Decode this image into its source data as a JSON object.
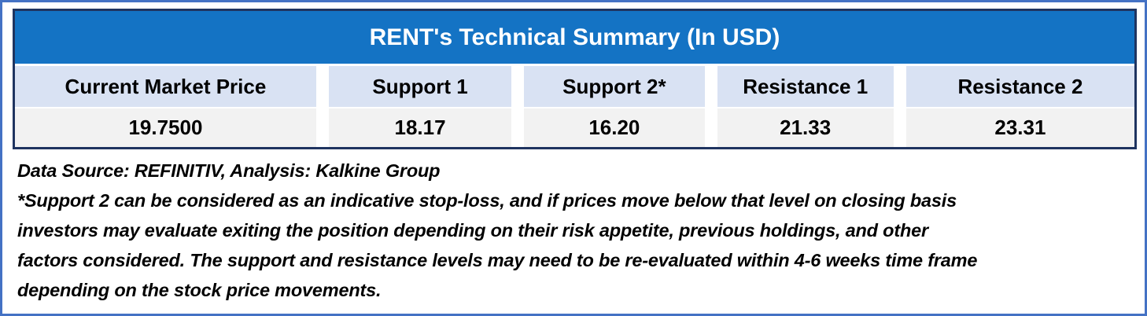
{
  "table": {
    "title": "RENT's Technical Summary (In USD)",
    "columns": [
      {
        "header": "Current Market Price",
        "value": "19.7500"
      },
      {
        "header": "Support 1",
        "value": "18.17"
      },
      {
        "header": "Support 2*",
        "value": "16.20"
      },
      {
        "header": "Resistance 1",
        "value": "21.33"
      },
      {
        "header": "Resistance 2",
        "value": "23.31"
      }
    ]
  },
  "footer": {
    "source_line": "Data Source: REFINITIV, Analysis: Kalkine Group",
    "note_lines": [
      "*Support 2 can be considered as an indicative stop-loss, and if prices move below that level on closing basis",
      "investors may evaluate exiting the position depending on their risk appetite, previous holdings, and other",
      "factors considered. The support and resistance levels may need to be re-evaluated within 4-6 weeks time frame",
      "depending on the stock price movements."
    ]
  },
  "colors": {
    "outer_frame": "#4472C4",
    "table_border": "#1F3460",
    "title_background": "#1473C4",
    "title_text": "#FFFFFF",
    "header_row_background": "#D9E2F3",
    "value_row_background": "#F2F2F2",
    "body_text": "#000000"
  }
}
